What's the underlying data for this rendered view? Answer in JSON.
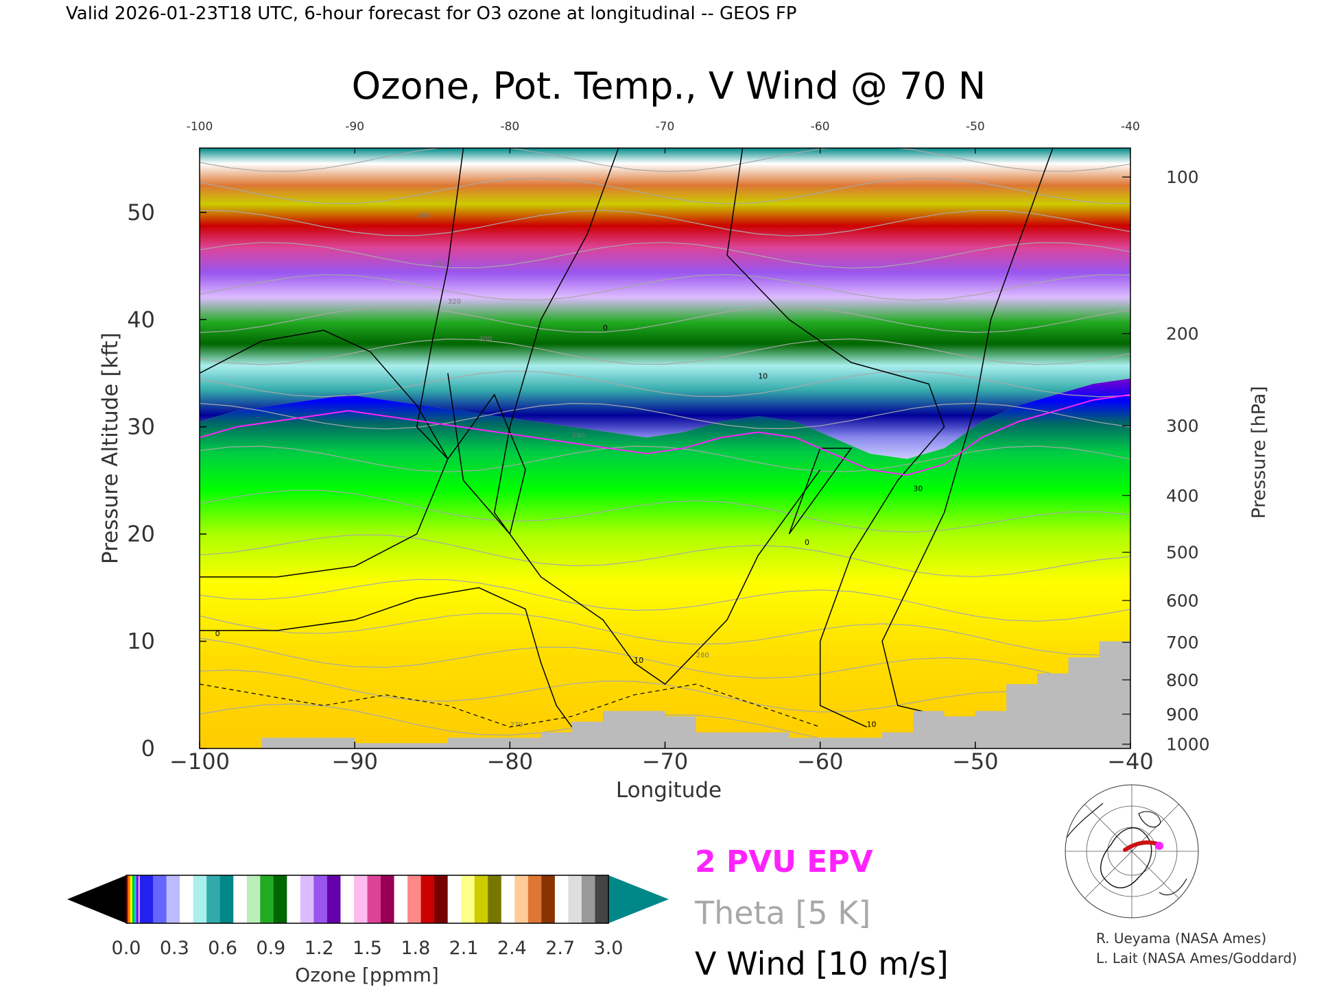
{
  "header": "Valid 2026-01-23T18 UTC, 6-hour forecast for O3 ozone at longitudinal -- GEOS FP",
  "colors": {
    "epv": "#ff22ff",
    "theta": "#a8a8a8",
    "wind": "#000000",
    "ground": "#bbbbbb"
  },
  "chart_data": {
    "type": "heatmap",
    "title": "Ozone, Pot. Temp., V Wind @ 70 N",
    "xlabel": "Longitude",
    "ylabel": "Pressure Altitude [kft]",
    "y2label": "Pressure [hPa]",
    "xlim": [
      -100,
      -40
    ],
    "ylim": [
      0,
      56
    ],
    "xticks": [
      -100,
      -90,
      -80,
      -70,
      -60,
      -50,
      -40
    ],
    "x_tick_labels": [
      "−100",
      "−90",
      "−80",
      "−70",
      "−60",
      "−50",
      "−40"
    ],
    "top_tick_labels": [
      "-100",
      "-90",
      "-80",
      "-70",
      "-60",
      "-50",
      "-40"
    ],
    "yticks": [
      0,
      10,
      20,
      30,
      40,
      50
    ],
    "pressure_ticks": [
      {
        "hpa": 100,
        "kft": 53.3
      },
      {
        "hpa": 200,
        "kft": 38.7
      },
      {
        "hpa": 300,
        "kft": 30.1
      },
      {
        "hpa": 400,
        "kft": 23.6
      },
      {
        "hpa": 500,
        "kft": 18.3
      },
      {
        "hpa": 600,
        "kft": 13.8
      },
      {
        "hpa": 700,
        "kft": 9.9
      },
      {
        "hpa": 800,
        "kft": 6.4
      },
      {
        "hpa": 900,
        "kft": 3.2
      },
      {
        "hpa": 1000,
        "kft": 0.4
      }
    ],
    "tropopause_kft": [
      30.5,
      31.5,
      32,
      32.5,
      33,
      32.5,
      32,
      31.5,
      31,
      30.5,
      30,
      29.5,
      29,
      29.5,
      30.5,
      31,
      30.5,
      29,
      27.5,
      27,
      28,
      30.5,
      32,
      33,
      34,
      34.5
    ],
    "tropopause_x": [
      -100,
      -97.6,
      -95.2,
      -92.8,
      -90.4,
      -88,
      -85.6,
      -83.2,
      -80.8,
      -78.4,
      -76,
      -73.6,
      -71.2,
      -68.8,
      -66.4,
      -64,
      -61.6,
      -59.2,
      -56.8,
      -54.4,
      -52,
      -49.6,
      -47.2,
      -44.8,
      -42.4,
      -40
    ],
    "stratosphere_top_kft": [
      48,
      47,
      46,
      46.5,
      47,
      47.5,
      47.5,
      48,
      48.5,
      49,
      49.5,
      49.5,
      49.5,
      49.5,
      49.5,
      49.5,
      49.5,
      49,
      48.5,
      48.5,
      49.5,
      49,
      48.5,
      49,
      50,
      51
    ],
    "ground_x": [
      -100,
      -98,
      -96,
      -94,
      -92,
      -90,
      -88,
      -86,
      -84,
      -82,
      -80,
      -78,
      -76,
      -74,
      -72,
      -70,
      -68,
      -66,
      -64,
      -62,
      -60,
      -58,
      -56,
      -54,
      -52,
      -50,
      -48,
      -46,
      -44,
      -42,
      -40
    ],
    "ground_kft": [
      0,
      0,
      1,
      1,
      1,
      0.5,
      0.5,
      0.5,
      1,
      1,
      1,
      1.5,
      2.5,
      3.5,
      3.5,
      3,
      1.5,
      1.5,
      1.5,
      1,
      1,
      1,
      1.5,
      3.5,
      3,
      3.5,
      6,
      7,
      8.5,
      10,
      11.5
    ],
    "v_wind_labels": [
      "0",
      "0",
      "10",
      "30",
      "10",
      "0",
      "10"
    ],
    "theta_labels": [
      "400",
      "350",
      "320",
      "300",
      "290",
      "280",
      "270"
    ],
    "colorbar": {
      "label": "Ozone [ppmm]",
      "min": 0.0,
      "max": 3.0,
      "tick_values": [
        0.0,
        0.3,
        0.6,
        0.9,
        1.2,
        1.5,
        1.8,
        2.1,
        2.4,
        2.7,
        3.0
      ],
      "tick_labels": [
        "0.0",
        "0.3",
        "0.6",
        "0.9",
        "1.2",
        "1.5",
        "1.8",
        "2.1",
        "2.4",
        "2.7",
        "3.0"
      ],
      "segment_colors": [
        "#0000ff",
        "#2222ee",
        "#6666ff",
        "#bbbbff",
        "#ffffff",
        "#aaeeee",
        "#33aaaa",
        "#008888",
        "#ffffff",
        "#bbeebb",
        "#22aa22",
        "#006600",
        "#ffffff",
        "#ddbbff",
        "#9955ee",
        "#6600aa",
        "#ffffff",
        "#ffbbee",
        "#dd4499",
        "#990055",
        "#ffffff",
        "#ff8888",
        "#cc0000",
        "#770000",
        "#ffffff",
        "#ffff88",
        "#cccc00",
        "#777700",
        "#ffffff",
        "#ffcc99",
        "#dd7733",
        "#883300",
        "#ffffff",
        "#dddddd",
        "#999999",
        "#444444"
      ],
      "under_color": "#000000",
      "over_color": "#008888"
    },
    "legend": [
      "2 PVU EPV",
      "Theta [5 K]",
      "V Wind [10 m/s]"
    ],
    "legend_placement": "bottom-center"
  },
  "credits": [
    "R. Ueyama (NASA Ames)",
    "L. Lait (NASA Ames/Goddard)"
  ]
}
